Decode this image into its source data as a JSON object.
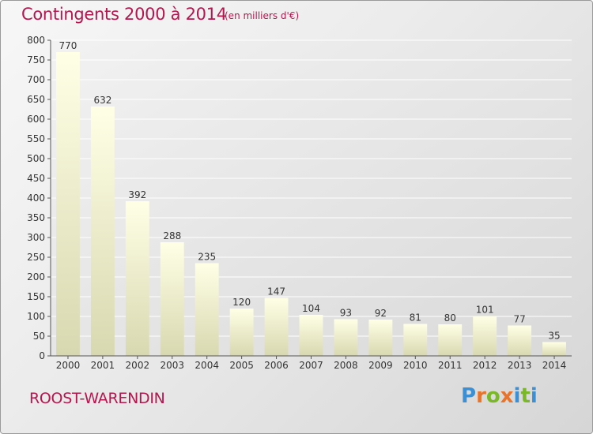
{
  "header": {
    "title": "Contingents 2000 à 2014",
    "unit": "(en milliers d'€)"
  },
  "footer": {
    "commune": "ROOST-WARENDIN",
    "logo_text": "Proxiti"
  },
  "colors": {
    "accent": "#b3174e",
    "bar_top": "#ffffe6",
    "bar_bottom": "#d8d8b0",
    "logo_letters": [
      "#3b8fd4",
      "#e8732a",
      "#7ab828",
      "#e8732a",
      "#3b8fd4",
      "#7ab828",
      "#3b8fd4"
    ]
  },
  "chart_data": {
    "type": "bar",
    "title": "Contingents 2000 à 2014",
    "categories": [
      "2000",
      "2001",
      "2002",
      "2003",
      "2004",
      "2005",
      "2006",
      "2007",
      "2008",
      "2009",
      "2010",
      "2011",
      "2012",
      "2013",
      "2014"
    ],
    "values": [
      770,
      632,
      392,
      288,
      235,
      120,
      147,
      104,
      93,
      92,
      81,
      80,
      101,
      77,
      35
    ],
    "xlabel": "",
    "ylabel": "",
    "ylim": [
      0,
      800
    ],
    "yticks": [
      0,
      50,
      100,
      150,
      200,
      250,
      300,
      350,
      400,
      450,
      500,
      550,
      600,
      650,
      700,
      750,
      800
    ],
    "grid": true,
    "legend": "none"
  }
}
